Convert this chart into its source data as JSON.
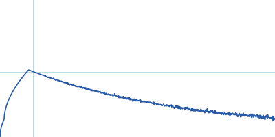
{
  "background_color": "#ffffff",
  "line_color": "#2a5ba8",
  "line_width": 1.2,
  "grid_color": "#b8d8e8",
  "grid_linewidth": 0.7,
  "figsize": [
    4.0,
    2.0
  ],
  "dpi": 100,
  "noise_seed": 42,
  "n_points": 800
}
